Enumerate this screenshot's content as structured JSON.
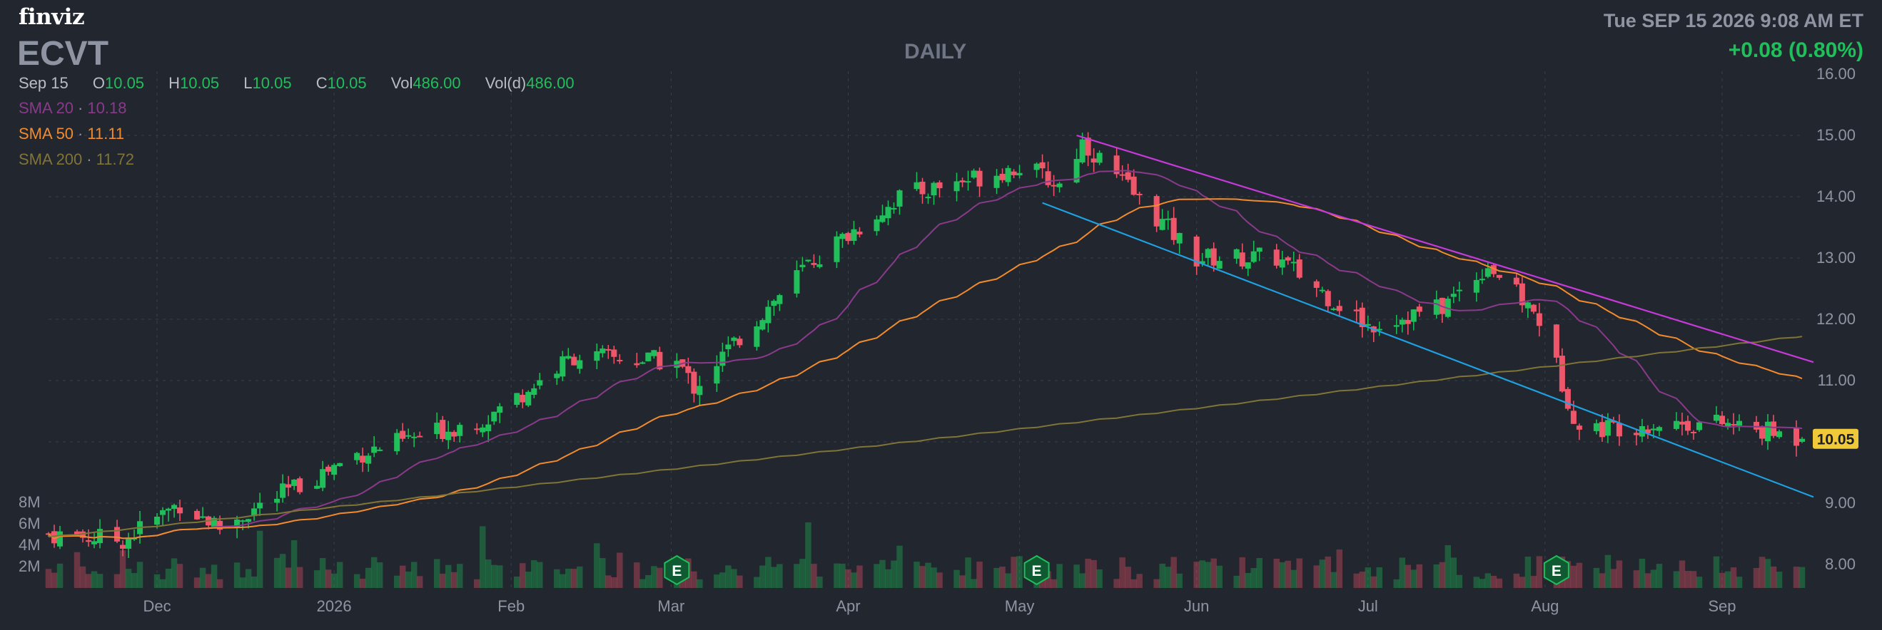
{
  "header": {
    "logo": "finviz",
    "ticker": "ECVT",
    "period": "DAILY",
    "datetime": "Tue SEP 15 2026 9:08 AM ET",
    "change": "+0.08 (0.80%)"
  },
  "ohlc": {
    "date": "Sep 15",
    "open_label": "O",
    "open": "10.05",
    "high_label": "H",
    "high": "10.05",
    "low_label": "L",
    "low": "10.05",
    "close_label": "C",
    "close": "10.05",
    "vol_label": "Vol",
    "vol": "486.00",
    "vold_label": "Vol(d)",
    "vold": "486.00"
  },
  "indicators": [
    {
      "name": "SMA 20",
      "value": "10.18",
      "color": "#8a3a8a"
    },
    {
      "name": "SMA 50",
      "value": "11.11",
      "color": "#f28b2c"
    },
    {
      "name": "SMA 200",
      "value": "11.72",
      "color": "#807437"
    }
  ],
  "colors": {
    "background": "#22262f",
    "up": "#1fbf5a",
    "down": "#f0566a",
    "trend_upper": "#c53ad9",
    "trend_lower": "#1fa0e0",
    "price_tag": "#f0c93a",
    "grid": "#3a3f4b"
  },
  "chart_data": {
    "type": "candlestick",
    "title": "ECVT",
    "price_axis": {
      "ticks": [
        8,
        9,
        10,
        11,
        12,
        13,
        14,
        15,
        16
      ],
      "labels": [
        "8.00",
        "9.00",
        "10.00",
        "11.00",
        "12.00",
        "13.00",
        "14.00",
        "15.00",
        "16.00"
      ],
      "ylim": [
        7.8,
        16.0
      ]
    },
    "volume_axis": {
      "ticks": [
        2,
        4,
        6,
        8
      ],
      "labels": [
        "2M",
        "4M",
        "6M",
        "8M"
      ],
      "unit": "M"
    },
    "x_labels": [
      "Dec",
      "2026",
      "Feb",
      "Mar",
      "Apr",
      "May",
      "Jun",
      "Jul",
      "Aug",
      "Sep"
    ],
    "x_range": [
      "2025-11-12",
      "2026-09-15"
    ],
    "last_price": "10.05",
    "earnings_markers": [
      {
        "date": "2026-03-02",
        "label": "E"
      },
      {
        "date": "2026-05-04",
        "label": "E"
      },
      {
        "date": "2026-08-03",
        "label": "E"
      }
    ],
    "trendlines": [
      {
        "name": "upper",
        "start": [
          "2026-05-11",
          15.0
        ],
        "end": [
          "2026-09-17",
          11.3
        ]
      },
      {
        "name": "lower",
        "start": [
          "2026-05-05",
          13.9
        ],
        "end": [
          "2026-09-17",
          9.1
        ]
      }
    ],
    "price_anchors": [
      [
        "2025-11-12",
        8.5
      ],
      [
        "2025-11-25",
        8.4
      ],
      [
        "2025-12-05",
        9.0
      ],
      [
        "2025-12-12",
        8.6
      ],
      [
        "2026-01-05",
        9.8
      ],
      [
        "2026-01-28",
        10.4
      ],
      [
        "2026-02-12",
        11.4
      ],
      [
        "2026-03-02",
        11.3
      ],
      [
        "2026-03-05",
        10.9
      ],
      [
        "2026-03-25",
        12.9
      ],
      [
        "2026-04-10",
        14.0
      ],
      [
        "2026-05-01",
        14.5
      ],
      [
        "2026-05-08",
        14.2
      ],
      [
        "2026-05-12",
        14.9
      ],
      [
        "2026-06-01",
        13.0
      ],
      [
        "2026-06-15",
        13.0
      ],
      [
        "2026-07-01",
        11.9
      ],
      [
        "2026-07-14",
        12.2
      ],
      [
        "2026-07-22",
        12.9
      ],
      [
        "2026-07-31",
        12.0
      ],
      [
        "2026-08-07",
        10.2
      ],
      [
        "2026-08-20",
        10.3
      ],
      [
        "2026-09-01",
        10.3
      ],
      [
        "2026-09-15",
        10.05
      ]
    ]
  }
}
